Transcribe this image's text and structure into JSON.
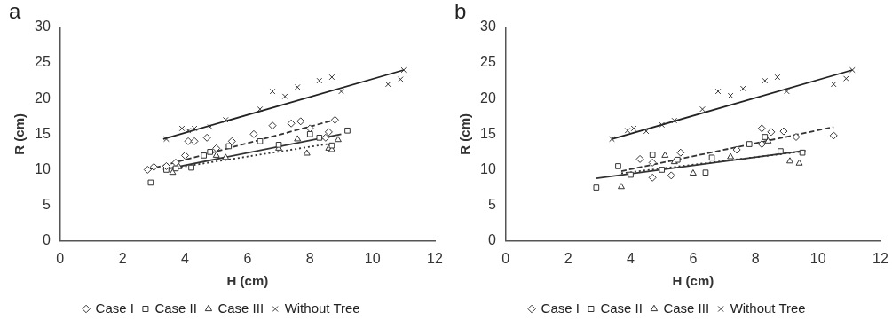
{
  "chart_data": [
    {
      "type": "scatter",
      "title": "a",
      "xlabel": "H (cm)",
      "ylabel": "R (cm)",
      "xlim": [
        0,
        12
      ],
      "xticks": [
        0,
        2,
        4,
        6,
        8,
        10,
        12
      ],
      "ylim": [
        0,
        30
      ],
      "yticks": [
        0,
        5,
        10,
        15,
        20,
        25,
        30
      ],
      "grid": false,
      "legend": "bottom",
      "series": [
        {
          "name": "Case I",
          "color": "#333333",
          "marker": "diamond",
          "x": [
            2.8,
            3,
            3.4,
            3.7,
            4,
            4.1,
            4.3,
            4.7,
            5,
            5.5,
            6.2,
            6.8,
            7.4,
            7.7,
            8,
            8.5,
            8.6,
            8.8
          ],
          "values": [
            10,
            10.4,
            10.5,
            11,
            12,
            14,
            14,
            14.5,
            13,
            14,
            15,
            16.2,
            16.5,
            16.8,
            15.8,
            14.5,
            15.3,
            17
          ]
        },
        {
          "name": "Case II",
          "color": "#333333",
          "marker": "square",
          "x": [
            2.9,
            3.4,
            3.7,
            4.2,
            4.6,
            4.8,
            5.4,
            6.4,
            7,
            8,
            8.3,
            8.7,
            9.2
          ],
          "values": [
            8.2,
            10,
            10.2,
            10.3,
            12,
            12.5,
            13.3,
            14,
            13.5,
            15,
            14.5,
            13.4,
            15.5
          ]
        },
        {
          "name": "Case III",
          "color": "#333333",
          "marker": "triangle",
          "x": [
            3.6,
            3.8,
            5,
            5.3,
            7,
            7.6,
            7.9,
            8.6,
            8.7,
            8.9
          ],
          "values": [
            9.6,
            10.4,
            12,
            11.7,
            13,
            14.3,
            12.3,
            13,
            12.8,
            14.2
          ]
        },
        {
          "name": "Without Tree",
          "color": "#333333",
          "marker": "cross",
          "x": [
            3.4,
            3.9,
            4.1,
            4.3,
            4.8,
            5.3,
            6.4,
            6.8,
            7.2,
            7.6,
            8.3,
            8.7,
            9,
            10.5,
            10.9,
            11
          ],
          "values": [
            14.3,
            15.8,
            15.5,
            15.8,
            16,
            17,
            18.5,
            21,
            20.3,
            21.6,
            22.5,
            23,
            21,
            22,
            22.7,
            24
          ]
        },
        {
          "type": "line",
          "color": "#333333",
          "line_style": "dashed",
          "x": [
            2.8,
            8.8
          ],
          "values": [
            10,
            17
          ]
        },
        {
          "type": "line",
          "color": "#333333",
          "line_style": "solid",
          "x": [
            3.3,
            9
          ],
          "values": [
            10,
            15
          ]
        },
        {
          "type": "line",
          "color": "#333333",
          "line_style": "dotted",
          "x": [
            3.3,
            8.7
          ],
          "values": [
            10,
            13.7
          ]
        },
        {
          "type": "line",
          "color": "#222222",
          "line_style": "solid",
          "x": [
            3.3,
            11
          ],
          "values": [
            14.3,
            24
          ]
        }
      ]
    },
    {
      "type": "scatter",
      "title": "b",
      "xlabel": "H (cm)",
      "ylabel": "R (cm)",
      "xlim": [
        0,
        12
      ],
      "xticks": [
        0,
        2,
        4,
        6,
        8,
        10,
        12
      ],
      "ylim": [
        0,
        30
      ],
      "yticks": [
        0,
        5,
        10,
        15,
        20,
        25,
        30
      ],
      "grid": false,
      "legend": "bottom",
      "series": [
        {
          "name": "Case I",
          "color": "#333333",
          "marker": "diamond",
          "x": [
            4.3,
            4.7,
            4.7,
            5.3,
            5.6,
            7.4,
            8.2,
            8.2,
            8.5,
            8.9,
            9.3,
            10.5
          ],
          "values": [
            11.5,
            8.9,
            11,
            9.2,
            12.4,
            12.8,
            13.6,
            15.8,
            15.3,
            15.4,
            14.6,
            14.8
          ]
        },
        {
          "name": "Case II",
          "color": "#333333",
          "marker": "square",
          "x": [
            2.9,
            3.6,
            4,
            4.7,
            5,
            5.5,
            6.4,
            6.6,
            7.8,
            8.3,
            8.8,
            9.5
          ],
          "values": [
            7.5,
            10.5,
            9.3,
            12.1,
            10,
            11.4,
            9.6,
            11.7,
            13.6,
            14.6,
            12.6,
            12.4
          ]
        },
        {
          "name": "Case III",
          "color": "#333333",
          "marker": "triangle",
          "x": [
            3.7,
            5.1,
            5.4,
            6,
            7.2,
            8.4,
            9.1,
            9.4
          ],
          "values": [
            7.6,
            12,
            11.1,
            9.5,
            11.8,
            14,
            11.2,
            10.9
          ]
        },
        {
          "name": "Without Tree",
          "color": "#333333",
          "marker": "cross",
          "x": [
            3.4,
            3.9,
            4.1,
            4.5,
            5,
            5.4,
            6.3,
            6.8,
            7.2,
            7.6,
            8.3,
            8.7,
            9,
            10.5,
            10.9,
            11.1
          ],
          "values": [
            14.3,
            15.5,
            15.8,
            15.4,
            16.3,
            16.9,
            18.5,
            21,
            20.4,
            21.4,
            22.5,
            23,
            21,
            22,
            22.8,
            24
          ]
        },
        {
          "type": "line",
          "color": "#333333",
          "line_style": "dashed",
          "x": [
            3.7,
            10.5
          ],
          "values": [
            9.8,
            16
          ]
        },
        {
          "type": "line",
          "color": "#333333",
          "line_style": "solid",
          "x": [
            2.9,
            9.6
          ],
          "values": [
            8.8,
            12.7
          ]
        },
        {
          "type": "line",
          "color": "#333333",
          "line_style": "dotted",
          "x": [
            3.7,
            9.4
          ],
          "values": [
            9.5,
            12.5
          ]
        },
        {
          "type": "line",
          "color": "#222222",
          "line_style": "solid",
          "x": [
            3.4,
            11.1
          ],
          "values": [
            14.3,
            24
          ]
        }
      ]
    }
  ]
}
